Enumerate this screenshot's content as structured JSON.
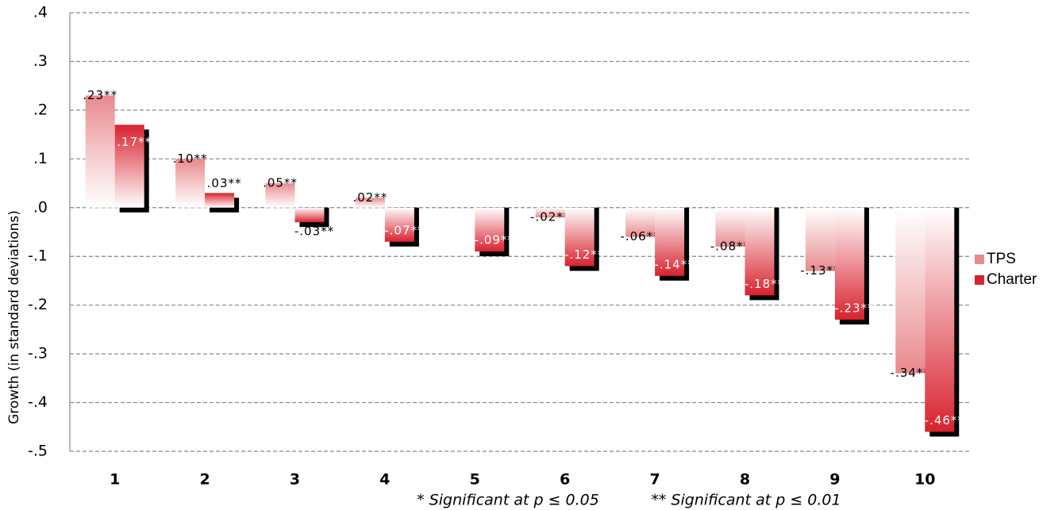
{
  "chart_data": {
    "type": "bar",
    "y_label": "Growth (in standard deviations)",
    "categories": [
      "1",
      "2",
      "3",
      "4",
      "5",
      "6",
      "7",
      "8",
      "9",
      "10"
    ],
    "series": [
      {
        "name": "TPS",
        "color": "#e8898c",
        "values": [
          0.23,
          0.1,
          0.05,
          0.02,
          0,
          -0.02,
          -0.06,
          -0.08,
          -0.13,
          -0.34
        ],
        "value_labels": [
          ".23**",
          ".10**",
          ".05**",
          ".02**",
          null,
          "-.02**",
          "-.06**",
          "-.08**",
          "-.13**",
          "-.34**"
        ]
      },
      {
        "name": "Charter",
        "color": "#d8222e",
        "values": [
          0.17,
          0.03,
          -0.03,
          -0.07,
          -0.09,
          -0.12,
          -0.14,
          -0.18,
          -0.23,
          -0.46
        ],
        "value_labels": [
          ".17**",
          ".03**",
          "-.03**",
          "-.07**",
          "-.09**",
          "-.12**",
          "-.14**",
          "-.18**",
          "-.23**",
          "-.46**"
        ]
      }
    ],
    "ylim": [
      -0.5,
      0.4
    ],
    "yticks": [
      {
        "value": 0.4,
        "label": ".4"
      },
      {
        "value": 0.3,
        "label": ".3"
      },
      {
        "value": 0.2,
        "label": ".2"
      },
      {
        "value": 0.1,
        "label": ".1"
      },
      {
        "value": 0,
        "label": ".0"
      },
      {
        "value": -0.1,
        "label": "-.1"
      },
      {
        "value": -0.2,
        "label": "-.2"
      },
      {
        "value": -0.3,
        "label": "-.3"
      },
      {
        "value": -0.4,
        "label": "-.4"
      },
      {
        "value": -0.5,
        "label": "-.5"
      }
    ],
    "grid": true,
    "legend": "right",
    "notes": [
      "* Significant at p ≤ 0.05",
      "** Significant at p ≤ 0.01"
    ]
  }
}
